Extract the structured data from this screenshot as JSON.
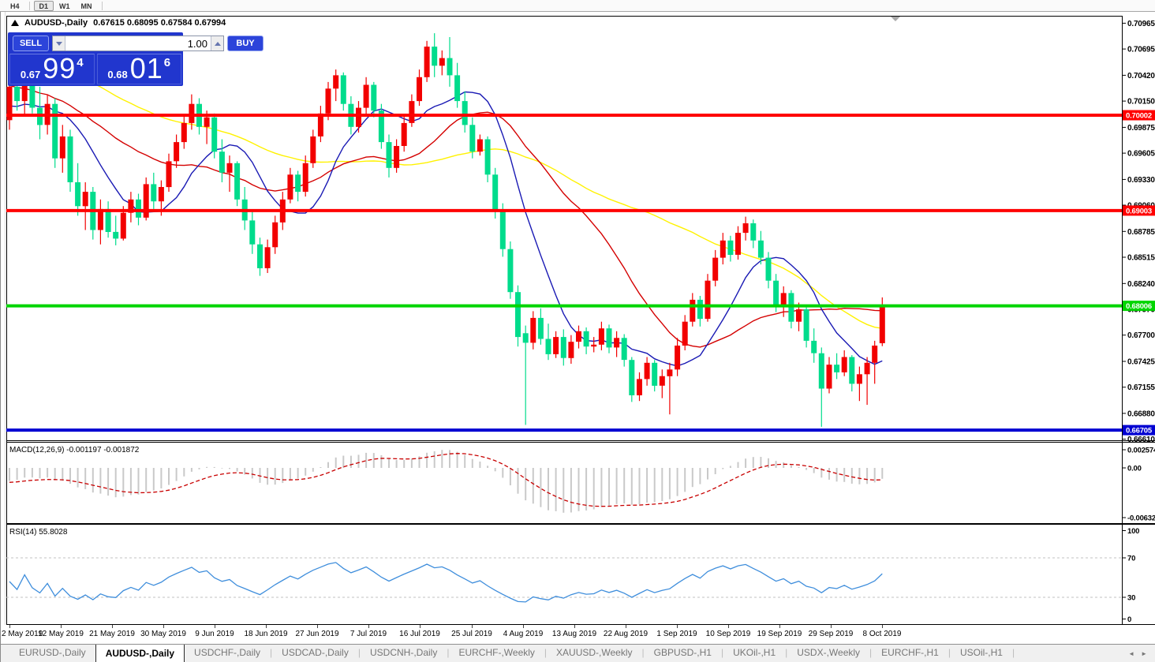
{
  "toolbar": {
    "timeframes": [
      {
        "label": "H4",
        "active": false
      },
      {
        "label": "D1",
        "active": true
      },
      {
        "label": "W1",
        "active": false
      },
      {
        "label": "MN",
        "active": false
      }
    ]
  },
  "chart_header": {
    "symbol_period": "AUDUSD-,Daily",
    "ohlc": "0.67615 0.68095 0.67584 0.67994"
  },
  "trade_panel": {
    "sell_label": "SELL",
    "buy_label": "BUY",
    "volume": "1.00",
    "sell_price_prefix": "0.67",
    "sell_price_main": "99",
    "sell_price_sup": "4",
    "buy_price_prefix": "0.68",
    "buy_price_main": "01",
    "buy_price_sup": "6"
  },
  "chart_data": {
    "type": "candlestick",
    "symbol": "AUDUSD-",
    "period": "Daily",
    "price_axis_ticks": [
      "0.70965",
      "0.70695",
      "0.70420",
      "0.70150",
      "0.69875",
      "0.69605",
      "0.69330",
      "0.69060",
      "0.68785",
      "0.68515",
      "0.68240",
      "0.67970",
      "0.67700",
      "0.67425",
      "0.67155",
      "0.66880",
      "0.66610"
    ],
    "levels": [
      {
        "price": "0.70002",
        "color": "#FF0000",
        "width": 4
      },
      {
        "price": "0.69003",
        "color": "#FF0000",
        "width": 4
      },
      {
        "price": "0.68006",
        "color": "#00D500",
        "width": 4
      },
      {
        "price": "0.66705",
        "color": "#0000D2",
        "width": 4
      }
    ],
    "date_ticks": [
      "2 May 2019",
      "12 May 2019",
      "21 May 2019",
      "30 May 2019",
      "9 Jun 2019",
      "18 Jun 2019",
      "27 Jun 2019",
      "7 Jul 2019",
      "16 Jul 2019",
      "25 Jul 2019",
      "4 Aug 2019",
      "13 Aug 2019",
      "22 Aug 2019",
      "1 Sep 2019",
      "10 Sep 2019",
      "19 Sep 2019",
      "29 Sep 2019",
      "8 Oct 2019"
    ],
    "moving_averages": [
      {
        "period": 10,
        "color": "#1A1AB4"
      },
      {
        "period": 25,
        "color": "#D40000"
      },
      {
        "period": 50,
        "color": "#FFF200"
      }
    ],
    "candles": [
      [
        0.6995,
        0.706,
        0.6985,
        0.703
      ],
      [
        0.703,
        0.7062,
        0.7005,
        0.7015
      ],
      [
        0.7015,
        0.7048,
        0.7,
        0.704
      ],
      [
        0.704,
        0.7055,
        0.7002,
        0.7008
      ],
      [
        0.7008,
        0.703,
        0.6975,
        0.699
      ],
      [
        0.699,
        0.7022,
        0.698,
        0.7012
      ],
      [
        0.7012,
        0.7018,
        0.6945,
        0.6955
      ],
      [
        0.6955,
        0.699,
        0.694,
        0.6978
      ],
      [
        0.6978,
        0.6985,
        0.692,
        0.693
      ],
      [
        0.693,
        0.695,
        0.6895,
        0.6905
      ],
      [
        0.6905,
        0.693,
        0.688,
        0.692
      ],
      [
        0.692,
        0.6925,
        0.687,
        0.688
      ],
      [
        0.688,
        0.6912,
        0.6865,
        0.6902
      ],
      [
        0.6902,
        0.691,
        0.6872,
        0.6878
      ],
      [
        0.6878,
        0.6895,
        0.6864,
        0.6871
      ],
      [
        0.6871,
        0.6905,
        0.6869,
        0.6898
      ],
      [
        0.6898,
        0.692,
        0.6888,
        0.6912
      ],
      [
        0.6912,
        0.6918,
        0.6885,
        0.6893
      ],
      [
        0.6893,
        0.6935,
        0.689,
        0.6928
      ],
      [
        0.6928,
        0.694,
        0.6902,
        0.691
      ],
      [
        0.691,
        0.6932,
        0.6895,
        0.6925
      ],
      [
        0.6925,
        0.696,
        0.692,
        0.6952
      ],
      [
        0.6952,
        0.698,
        0.6945,
        0.6972
      ],
      [
        0.6972,
        0.7,
        0.6965,
        0.6992
      ],
      [
        0.6992,
        0.7022,
        0.6985,
        0.7012
      ],
      [
        0.7012,
        0.7018,
        0.698,
        0.6988
      ],
      [
        0.6988,
        0.7005,
        0.697,
        0.6998
      ],
      [
        0.6998,
        0.7002,
        0.6955,
        0.6962
      ],
      [
        0.6962,
        0.6975,
        0.693,
        0.694
      ],
      [
        0.694,
        0.6958,
        0.692,
        0.695
      ],
      [
        0.695,
        0.6952,
        0.6905,
        0.6912
      ],
      [
        0.6912,
        0.6925,
        0.688,
        0.689
      ],
      [
        0.689,
        0.69,
        0.6855,
        0.6865
      ],
      [
        0.6865,
        0.6872,
        0.6832,
        0.684
      ],
      [
        0.684,
        0.687,
        0.6835,
        0.6862
      ],
      [
        0.6862,
        0.6895,
        0.6855,
        0.6888
      ],
      [
        0.6888,
        0.692,
        0.688,
        0.6912
      ],
      [
        0.6912,
        0.6945,
        0.6908,
        0.6938
      ],
      [
        0.6938,
        0.6942,
        0.691,
        0.692
      ],
      [
        0.692,
        0.6958,
        0.6915,
        0.695
      ],
      [
        0.695,
        0.6985,
        0.6945,
        0.6978
      ],
      [
        0.6978,
        0.701,
        0.6972,
        0.7002
      ],
      [
        0.7002,
        0.7035,
        0.6995,
        0.7028
      ],
      [
        0.7028,
        0.7048,
        0.7015,
        0.7042
      ],
      [
        0.7042,
        0.7045,
        0.7005,
        0.7012
      ],
      [
        0.7012,
        0.702,
        0.698,
        0.6988
      ],
      [
        0.6988,
        0.7015,
        0.6982,
        0.7008
      ],
      [
        0.7008,
        0.704,
        0.7,
        0.7032
      ],
      [
        0.7032,
        0.7035,
        0.6998,
        0.7005
      ],
      [
        0.7005,
        0.7012,
        0.6965,
        0.6972
      ],
      [
        0.6972,
        0.698,
        0.6935,
        0.6945
      ],
      [
        0.6945,
        0.6975,
        0.694,
        0.6968
      ],
      [
        0.6968,
        0.7,
        0.6962,
        0.6992
      ],
      [
        0.6992,
        0.7022,
        0.6988,
        0.7015
      ],
      [
        0.7015,
        0.7048,
        0.701,
        0.704
      ],
      [
        0.704,
        0.7078,
        0.7035,
        0.7072
      ],
      [
        0.7072,
        0.7086,
        0.704,
        0.7052
      ],
      [
        0.7052,
        0.7068,
        0.7042,
        0.706
      ],
      [
        0.706,
        0.7082,
        0.703,
        0.7042
      ],
      [
        0.7042,
        0.7055,
        0.7008,
        0.7015
      ],
      [
        0.7015,
        0.7025,
        0.6982,
        0.699
      ],
      [
        0.699,
        0.6998,
        0.6955,
        0.6962
      ],
      [
        0.6962,
        0.698,
        0.6958,
        0.6975
      ],
      [
        0.6975,
        0.6978,
        0.693,
        0.6938
      ],
      [
        0.6938,
        0.6945,
        0.6892,
        0.69
      ],
      [
        0.69,
        0.6908,
        0.6852,
        0.686
      ],
      [
        0.686,
        0.6868,
        0.6808,
        0.6815
      ],
      [
        0.6815,
        0.6822,
        0.6758,
        0.6768
      ],
      [
        0.6772,
        0.678,
        0.6676,
        0.6762
      ],
      [
        0.6762,
        0.6795,
        0.6755,
        0.6788
      ],
      [
        0.6788,
        0.6798,
        0.676,
        0.6766
      ],
      [
        0.6766,
        0.6782,
        0.6744,
        0.675
      ],
      [
        0.675,
        0.6774,
        0.6746,
        0.6768
      ],
      [
        0.6768,
        0.6776,
        0.6738,
        0.6746
      ],
      [
        0.6746,
        0.677,
        0.674,
        0.6763
      ],
      [
        0.6763,
        0.678,
        0.6756,
        0.6774
      ],
      [
        0.6774,
        0.6778,
        0.675,
        0.6758
      ],
      [
        0.6758,
        0.6768,
        0.6752,
        0.676
      ],
      [
        0.676,
        0.6784,
        0.6754,
        0.6777
      ],
      [
        0.6777,
        0.6781,
        0.6751,
        0.6757
      ],
      [
        0.6757,
        0.6774,
        0.6747,
        0.6767
      ],
      [
        0.6767,
        0.6771,
        0.6737,
        0.6744
      ],
      [
        0.6744,
        0.6747,
        0.67,
        0.6707
      ],
      [
        0.6707,
        0.6731,
        0.6701,
        0.6724
      ],
      [
        0.6724,
        0.6747,
        0.6717,
        0.6741
      ],
      [
        0.6741,
        0.6744,
        0.6711,
        0.6717
      ],
      [
        0.6717,
        0.6734,
        0.6704,
        0.6727
      ],
      [
        0.6727,
        0.6741,
        0.6687,
        0.6734
      ],
      [
        0.6734,
        0.6767,
        0.6727,
        0.6759
      ],
      [
        0.6759,
        0.6791,
        0.6754,
        0.6784
      ],
      [
        0.6784,
        0.6814,
        0.6779,
        0.6807
      ],
      [
        0.6807,
        0.6811,
        0.6779,
        0.6787
      ],
      [
        0.6787,
        0.6834,
        0.6784,
        0.6827
      ],
      [
        0.6827,
        0.6859,
        0.6821,
        0.6851
      ],
      [
        0.6851,
        0.6877,
        0.6844,
        0.6869
      ],
      [
        0.6869,
        0.6874,
        0.6847,
        0.6854
      ],
      [
        0.6854,
        0.6884,
        0.6849,
        0.6877
      ],
      [
        0.6877,
        0.6894,
        0.6869,
        0.6887
      ],
      [
        0.6887,
        0.6891,
        0.6861,
        0.6869
      ],
      [
        0.6869,
        0.6879,
        0.6844,
        0.6851
      ],
      [
        0.6851,
        0.6857,
        0.6819,
        0.6827
      ],
      [
        0.6827,
        0.6834,
        0.6794,
        0.6801
      ],
      [
        0.6801,
        0.6821,
        0.6789,
        0.6814
      ],
      [
        0.6814,
        0.6817,
        0.6777,
        0.6784
      ],
      [
        0.6784,
        0.6804,
        0.6774,
        0.6797
      ],
      [
        0.6797,
        0.6799,
        0.6757,
        0.6764
      ],
      [
        0.6764,
        0.6777,
        0.6741,
        0.6751
      ],
      [
        0.6751,
        0.6757,
        0.6674,
        0.6714
      ],
      [
        0.6714,
        0.6747,
        0.6709,
        0.6739
      ],
      [
        0.6739,
        0.6751,
        0.6724,
        0.6731
      ],
      [
        0.6731,
        0.6754,
        0.6727,
        0.6747
      ],
      [
        0.6747,
        0.6749,
        0.6711,
        0.6719
      ],
      [
        0.6719,
        0.6737,
        0.6701,
        0.6729
      ],
      [
        0.6729,
        0.6747,
        0.6697,
        0.6741
      ],
      [
        0.6741,
        0.6764,
        0.6719,
        0.6759
      ],
      [
        0.67615,
        0.68095,
        0.67584,
        0.67994
      ]
    ]
  },
  "indicators": {
    "macd": {
      "label": "MACD(12,26,9)",
      "value_main": "-0.001197",
      "value_signal": "-0.001872",
      "axis_top": "0.002574",
      "axis_zero": "0.00",
      "axis_bottom": "-0.006326",
      "fast": 12,
      "slow": 26,
      "signal": 9
    },
    "rsi": {
      "label": "RSI(14)",
      "value": "55.8028",
      "period": 14,
      "axis_top": "100",
      "axis_high": "70",
      "axis_low": "30",
      "axis_bottom": "0",
      "level_high": 70,
      "level_low": 30
    }
  },
  "tabs": {
    "items": [
      {
        "label": "EURUSD-,Daily",
        "active": false
      },
      {
        "label": "AUDUSD-,Daily",
        "active": true
      },
      {
        "label": "USDCHF-,Daily",
        "active": false
      },
      {
        "label": "USDCAD-,Daily",
        "active": false
      },
      {
        "label": "USDCNH-,Daily",
        "active": false
      },
      {
        "label": "EURCHF-,Weekly",
        "active": false
      },
      {
        "label": "XAUUSD-,Weekly",
        "active": false
      },
      {
        "label": "GBPUSD-,H1",
        "active": false
      },
      {
        "label": "UKOil-,H1",
        "active": false
      },
      {
        "label": "USDX-,Weekly",
        "active": false
      },
      {
        "label": "EURCHF-,H1",
        "active": false
      },
      {
        "label": "USOil-,H1",
        "active": false
      }
    ],
    "scroll_left_icon": "◄",
    "scroll_right_icon": "►"
  },
  "colors": {
    "up_candle": "#F20000",
    "down_candle": "#00DC8C",
    "macd_hist": "#C9C9C9",
    "macd_signal": "#C80000",
    "rsi_line": "#3F8EDC",
    "panel_blue": "#2136CE",
    "panel_button_blue": "#2C44DA"
  }
}
